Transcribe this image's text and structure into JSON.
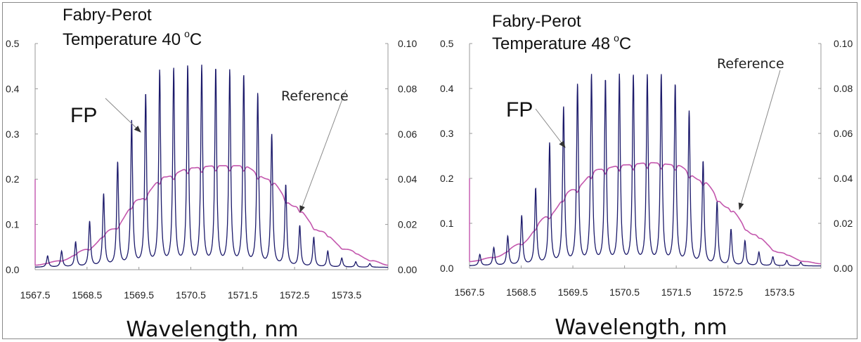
{
  "colors": {
    "fp": "#1c1a6b",
    "reference": "#c356ad",
    "axis": "#9a9a9a",
    "arrow": "#8a8a8a"
  },
  "panels": [
    {
      "title_line1": "Fabry-Perot",
      "title_line2": "Temperature 40",
      "title_deg": "o",
      "title_unit": "C",
      "fp_label": "FP",
      "ref_label": "Reference",
      "xlabel": "Wavelength, nm"
    },
    {
      "title_line1": "Fabry-Perot",
      "title_line2": "Temperature 48",
      "title_deg": "o",
      "title_unit": "C",
      "fp_label": "FP",
      "ref_label": "Reference",
      "xlabel": "Wavelength, nm"
    }
  ],
  "chart_data": [
    {
      "type": "line",
      "title": "Fabry-Perot Temperature 40 oC",
      "xlabel": "Wavelength, nm",
      "xlim": [
        1567.5,
        1574.3
      ],
      "xticks": [
        "1567.5",
        "1568.5",
        "1569.5",
        "1570.5",
        "1571.5",
        "1572.5",
        "1573.5"
      ],
      "ylim_left": [
        0,
        0.5
      ],
      "yticks_left": [
        "0.0",
        "0.1",
        "0.2",
        "0.3",
        "0.4",
        "0.5"
      ],
      "ylim_right": [
        0,
        0.1
      ],
      "yticks_right": [
        "0.00",
        "0.02",
        "0.04",
        "0.06",
        "0.08",
        "0.10"
      ],
      "series": [
        {
          "name": "FP",
          "axis": "left",
          "peaks_x": [
            1567.74,
            1568.01,
            1568.28,
            1568.55,
            1568.82,
            1569.09,
            1569.36,
            1569.63,
            1569.9,
            1570.17,
            1570.44,
            1570.71,
            1570.98,
            1571.25,
            1571.52,
            1571.79,
            1572.06,
            1572.33,
            1572.6,
            1572.87,
            1573.14,
            1573.41,
            1573.68,
            1573.95
          ],
          "peaks_y": [
            0.025,
            0.035,
            0.055,
            0.1,
            0.16,
            0.23,
            0.32,
            0.38,
            0.43,
            0.435,
            0.44,
            0.44,
            0.435,
            0.43,
            0.42,
            0.38,
            0.29,
            0.18,
            0.09,
            0.065,
            0.035,
            0.02,
            0.012,
            0.008
          ],
          "baseline_y": 0.005
        },
        {
          "name": "Reference",
          "axis": "right",
          "x": [
            1567.5,
            1568.0,
            1568.5,
            1569.0,
            1569.5,
            1570.0,
            1570.5,
            1571.0,
            1571.5,
            1572.0,
            1572.5,
            1573.0,
            1573.5,
            1574.0,
            1574.3
          ],
          "y": [
            0.002,
            0.004,
            0.009,
            0.018,
            0.031,
            0.041,
            0.045,
            0.046,
            0.046,
            0.04,
            0.028,
            0.017,
            0.009,
            0.004,
            0.002
          ]
        }
      ]
    },
    {
      "type": "line",
      "title": "Fabry-Perot Temperature 48 oC",
      "xlabel": "Wavelength, nm",
      "xlim": [
        1567.5,
        1574.3
      ],
      "xticks": [
        "1567.5",
        "1568.5",
        "1569.5",
        "1570.5",
        "1571.5",
        "1572.5",
        "1573.5"
      ],
      "ylim_left": [
        0,
        0.5
      ],
      "yticks_left": [
        "0.0",
        "0.1",
        "0.2",
        "0.3",
        "0.4",
        "0.5"
      ],
      "ylim_right": [
        0,
        0.1
      ],
      "yticks_right": [
        "0.00",
        "0.02",
        "0.04",
        "0.06",
        "0.08",
        "0.10"
      ],
      "series": [
        {
          "name": "FP",
          "axis": "left",
          "peaks_x": [
            1567.7,
            1567.97,
            1568.24,
            1568.51,
            1568.78,
            1569.05,
            1569.32,
            1569.59,
            1569.86,
            1570.13,
            1570.4,
            1570.67,
            1570.94,
            1571.21,
            1571.48,
            1571.75,
            1572.02,
            1572.29,
            1572.56,
            1572.83,
            1573.1,
            1573.37,
            1573.64,
            1573.91
          ],
          "peaks_y": [
            0.025,
            0.04,
            0.065,
            0.11,
            0.17,
            0.27,
            0.35,
            0.4,
            0.42,
            0.41,
            0.42,
            0.42,
            0.42,
            0.42,
            0.4,
            0.34,
            0.23,
            0.14,
            0.08,
            0.055,
            0.03,
            0.02,
            0.012,
            0.008
          ],
          "baseline_y": 0.005
        },
        {
          "name": "Reference",
          "axis": "right",
          "x": [
            1567.5,
            1568.0,
            1568.5,
            1569.0,
            1569.5,
            1570.0,
            1570.5,
            1571.0,
            1571.5,
            1572.0,
            1572.5,
            1573.0,
            1573.5,
            1574.0,
            1574.3
          ],
          "y": [
            0.003,
            0.005,
            0.011,
            0.023,
            0.035,
            0.044,
            0.046,
            0.047,
            0.046,
            0.039,
            0.027,
            0.015,
            0.007,
            0.003,
            0.002
          ]
        }
      ]
    }
  ]
}
